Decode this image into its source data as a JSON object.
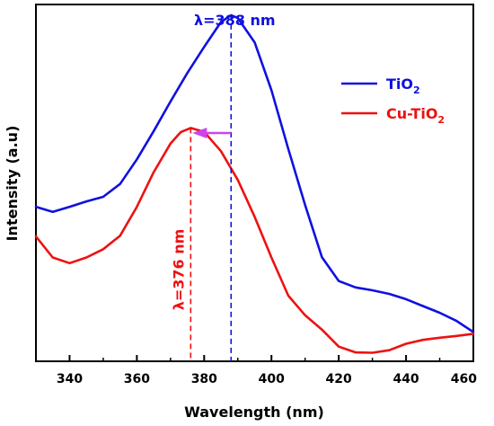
{
  "chart_data": {
    "type": "line",
    "xlabel": "Wavelength (nm)",
    "ylabel": "Intensity (a.u)",
    "xlim": [
      330,
      460
    ],
    "ylim": [
      0,
      1
    ],
    "x_ticks": [
      340,
      360,
      380,
      400,
      420,
      440,
      460
    ],
    "y_ticks_labeled": false,
    "grid": false,
    "legend_position": "top-right",
    "series": [
      {
        "name": "TiO₂",
        "color": "#1010e0",
        "x": [
          330,
          335,
          340,
          345,
          350,
          355,
          360,
          365,
          370,
          375,
          380,
          385,
          388,
          390,
          395,
          400,
          405,
          410,
          415,
          420,
          425,
          430,
          435,
          440,
          445,
          450,
          455,
          460
        ],
        "y": [
          0.433,
          0.419,
          0.433,
          0.448,
          0.461,
          0.497,
          0.566,
          0.645,
          0.728,
          0.808,
          0.881,
          0.951,
          0.97,
          0.962,
          0.894,
          0.76,
          0.595,
          0.438,
          0.292,
          0.225,
          0.207,
          0.199,
          0.189,
          0.174,
          0.155,
          0.136,
          0.113,
          0.082
        ]
      },
      {
        "name": "Cu-TiO₂",
        "color": "#ee1111",
        "x": [
          330,
          335,
          340,
          345,
          350,
          355,
          360,
          365,
          370,
          373,
          376,
          380,
          385,
          390,
          395,
          400,
          405,
          410,
          415,
          420,
          425,
          430,
          435,
          440,
          445,
          450,
          455,
          460
        ],
        "y": [
          0.35,
          0.291,
          0.275,
          0.291,
          0.314,
          0.352,
          0.433,
          0.53,
          0.61,
          0.642,
          0.654,
          0.643,
          0.589,
          0.508,
          0.405,
          0.291,
          0.184,
          0.129,
          0.089,
          0.041,
          0.025,
          0.024,
          0.031,
          0.049,
          0.06,
          0.066,
          0.071,
          0.077
        ]
      }
    ],
    "annotations": [
      {
        "text": "λ=388 nm",
        "x": 388,
        "color": "#1010e0",
        "mirrored": true
      },
      {
        "text": "λ=376 nm",
        "x": 376,
        "color": "#ee1111",
        "rotated": true
      }
    ],
    "shift_arrow": {
      "from_x": 388,
      "to_x": 376,
      "color": "#cc44ee"
    }
  }
}
